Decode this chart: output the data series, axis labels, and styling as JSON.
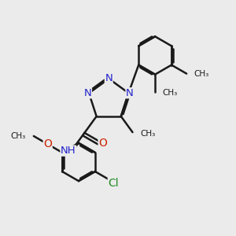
{
  "background_color": "#ebebeb",
  "bond_color": "#1a1a1a",
  "n_color": "#2222cc",
  "o_color": "#cc2200",
  "cl_color": "#228B22",
  "line_width": 1.8,
  "font_size": 10,
  "fig_size": [
    3.0,
    3.0
  ],
  "dpi": 100,
  "xlim": [
    0,
    10
  ],
  "ylim": [
    0,
    10
  ]
}
